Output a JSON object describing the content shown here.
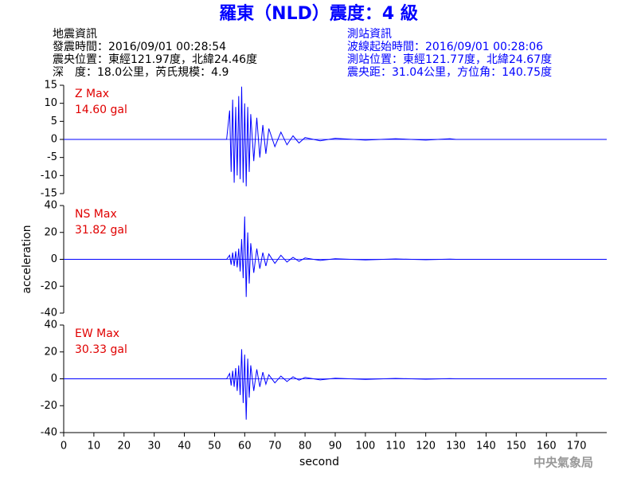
{
  "header": {
    "title": "羅東（NLD）震度：4 級",
    "left": [
      "地震資訊",
      "發震時間：2016/09/01 00:28:54",
      "震央位置：東經121.97度，北緯24.46度",
      "深　度：18.0公里，芮氏規模：4.9"
    ],
    "right": [
      "測站資訊",
      "波線起始時間：2016/09/01 00:28:06",
      "測站位置：東經121.77度，北緯24.67度",
      "震央距：31.04公里，方位角：140.75度"
    ],
    "credit": "中央氣象局"
  },
  "chart_data": [
    {
      "type": "line",
      "title": "Z Max",
      "annotation": "14.60 gal",
      "color": "#0000ff",
      "x": [
        0,
        54,
        55,
        55.5,
        56,
        56.5,
        57,
        57.5,
        58,
        58.5,
        59,
        59.5,
        60,
        60.5,
        61,
        61.5,
        62,
        63,
        64,
        65,
        66,
        67,
        68,
        70,
        72,
        74,
        76,
        78,
        80,
        85,
        90,
        100,
        110,
        120,
        128,
        130,
        180
      ],
      "values": [
        0,
        0,
        8,
        -9,
        11,
        -12,
        9,
        -10,
        12,
        -11,
        14.6,
        -12,
        10,
        -13,
        9,
        -9,
        7,
        -6,
        6,
        -5,
        4,
        -4,
        3,
        -2,
        2,
        -1.5,
        1,
        -1,
        0.5,
        -0.4,
        0.3,
        -0.2,
        0.2,
        -0.2,
        0.2,
        0,
        0
      ],
      "xlim": [
        0,
        180
      ],
      "ylim": [
        -15,
        15
      ],
      "yticks": [
        -15,
        -10,
        -5,
        0,
        5,
        10,
        15
      ]
    },
    {
      "type": "line",
      "title": "NS Max",
      "annotation": "31.82 gal",
      "color": "#0000ff",
      "y_label": "acceleration",
      "x": [
        0,
        54,
        55,
        55.5,
        56,
        56.5,
        57,
        57.5,
        58,
        58.5,
        59,
        59.5,
        60,
        60.5,
        61,
        61.5,
        62,
        63,
        64,
        65,
        66,
        67,
        68,
        70,
        72,
        74,
        76,
        78,
        80,
        85,
        90,
        100,
        110,
        120,
        128,
        130,
        180
      ],
      "values": [
        0,
        0,
        3,
        -4,
        5,
        -5,
        6,
        -6,
        8,
        -9,
        15,
        -14,
        31.82,
        -28,
        20,
        -18,
        12,
        -10,
        8,
        -7,
        5,
        -5,
        4,
        -3,
        3,
        -2,
        1.5,
        -1.5,
        1,
        -0.8,
        0.5,
        -0.4,
        0.3,
        -0.3,
        0.2,
        0,
        0
      ],
      "xlim": [
        0,
        180
      ],
      "ylim": [
        -40,
        40
      ],
      "yticks": [
        -40,
        -20,
        0,
        20,
        40
      ]
    },
    {
      "type": "line",
      "title": "EW Max",
      "annotation": "30.33 gal",
      "color": "#0000ff",
      "x_label": "second",
      "x": [
        0,
        54,
        55,
        55.5,
        56,
        56.5,
        57,
        57.5,
        58,
        58.5,
        59,
        59.5,
        60,
        60.5,
        61,
        61.5,
        62,
        63,
        64,
        65,
        66,
        67,
        68,
        70,
        72,
        74,
        76,
        78,
        80,
        85,
        90,
        100,
        110,
        120,
        128,
        130,
        180
      ],
      "values": [
        0,
        0,
        4,
        -5,
        6,
        -6,
        8,
        -9,
        10,
        -12,
        22,
        -18,
        18,
        -30.33,
        15,
        -14,
        10,
        -9,
        7,
        -6,
        5,
        -4,
        3,
        -3,
        2,
        -2,
        1.5,
        -1,
        1,
        -0.8,
        0.5,
        -0.4,
        0.3,
        -0.3,
        0.2,
        0,
        0
      ],
      "xlim": [
        0,
        180
      ],
      "ylim": [
        -40,
        40
      ],
      "yticks": [
        -40,
        -20,
        0,
        20,
        40
      ],
      "xticks": [
        0,
        10,
        20,
        30,
        40,
        50,
        60,
        70,
        80,
        90,
        100,
        110,
        120,
        130,
        140,
        150,
        160,
        170
      ]
    }
  ]
}
